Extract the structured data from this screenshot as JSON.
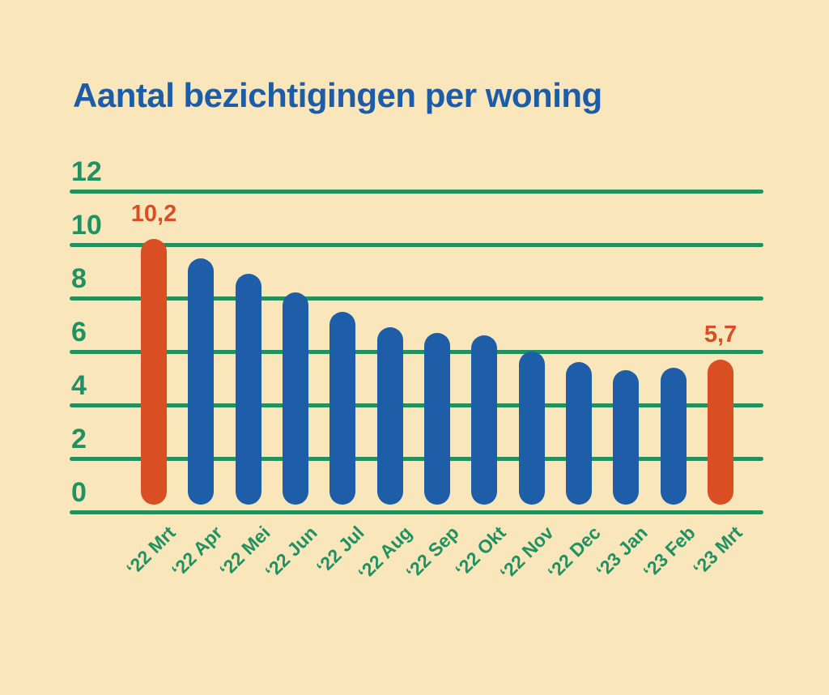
{
  "page": {
    "title": "Aantal bezichtigingen per woning"
  },
  "colors": {
    "background": "#FAE6BB",
    "title_text": "#1D5CA9",
    "bar_default": "#1E5EA9",
    "bar_highlight": "#D94F23",
    "axis_green": "#219162",
    "annotation_text": "#D94F23"
  },
  "chart_data": {
    "type": "bar",
    "title": "Aantal bezichtigingen per woning",
    "categories": [
      "‘22 Mrt",
      "‘22 Apr",
      "‘22 Mei",
      "‘22 Jun",
      "‘22 Jul",
      "‘22 Aug",
      "‘22 Sep",
      "‘22 Okt",
      "‘22 Nov",
      "‘22 Dec",
      "‘23 Jan",
      "‘23 Feb",
      "‘23 Mrt"
    ],
    "values": [
      10.2,
      9.5,
      8.9,
      8.2,
      7.5,
      6.9,
      6.7,
      6.6,
      6.0,
      5.6,
      5.3,
      5.4,
      5.7
    ],
    "highlighted_indices": [
      0,
      12
    ],
    "annotations": [
      {
        "index": 0,
        "label": "10,2"
      },
      {
        "index": 12,
        "label": "5,7"
      }
    ],
    "xlabel": "",
    "ylabel": "",
    "ylim": [
      0,
      12
    ],
    "yticks": [
      0,
      2,
      4,
      6,
      8,
      10,
      12
    ],
    "grid": true,
    "legend": false,
    "x_tick_rotation_deg": 45
  }
}
